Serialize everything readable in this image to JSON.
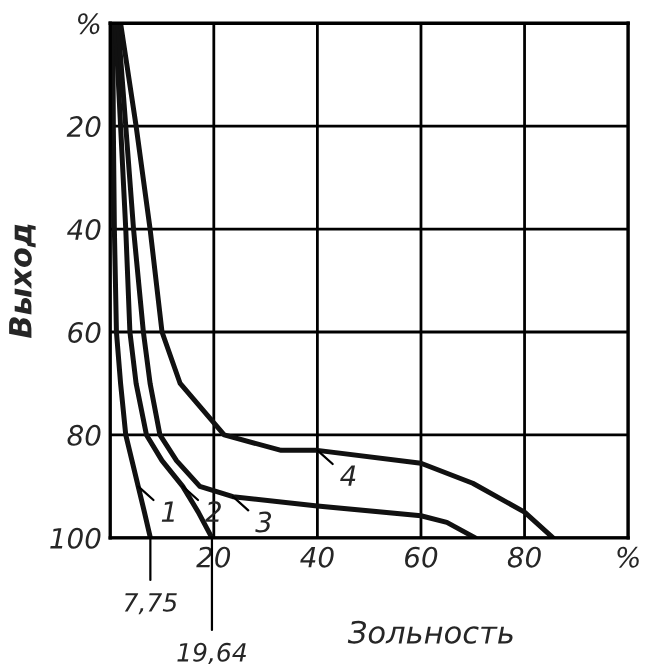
{
  "chart_data": {
    "type": "line",
    "xlabel": "Зольность",
    "ylabel": "Выход",
    "xlim": [
      0,
      100
    ],
    "ylim": [
      100,
      0
    ],
    "xticks": [
      20,
      40,
      60,
      80,
      {
        "value": 100,
        "label": "%"
      }
    ],
    "yticks": [
      {
        "value": 0,
        "label": "%"
      },
      20,
      40,
      60,
      80,
      100
    ],
    "grid": true,
    "marker": "none",
    "line_style": "solid",
    "series": [
      {
        "color": "#111111",
        "x": [
          0.5,
          0.6,
          0.8,
          1.2,
          2,
          3,
          4.2,
          5.4,
          6.6,
          7.75
        ],
        "values": [
          0,
          20,
          40,
          60,
          70,
          80,
          85,
          90,
          95,
          100
        ]
      },
      {
        "color": "#111111",
        "x": [
          1,
          2,
          3,
          3.8,
          5,
          7,
          10,
          14,
          17,
          19.64
        ],
        "values": [
          0,
          20,
          40,
          60,
          70,
          80,
          85,
          90,
          95,
          100
        ]
      },
      {
        "color": "#111111",
        "x": [
          1.5,
          3,
          4.5,
          6.4,
          7.7,
          9.6,
          12.8,
          17.3,
          23.7,
          40,
          60,
          65,
          70.5
        ],
        "values": [
          0,
          20,
          40,
          60,
          70,
          80,
          85,
          90,
          92,
          93.8,
          95.7,
          97,
          100
        ]
      },
      {
        "color": "#111111",
        "x": [
          2,
          5,
          7.7,
          10,
          13.5,
          22,
          33,
          40,
          60,
          70,
          80,
          85.5
        ],
        "values": [
          0,
          20,
          40,
          60,
          70,
          80,
          83,
          83,
          85.5,
          89.4,
          95,
          100
        ]
      }
    ],
    "annotations": [
      {
        "text": "1",
        "x": 5.4,
        "y": 90
      },
      {
        "text": "2",
        "x": 14,
        "y": 90
      },
      {
        "text": "3",
        "x": 23.7,
        "y": 92
      },
      {
        "text": "4",
        "x": 40,
        "y": 83
      },
      {
        "text": "7,75",
        "x": 7.75,
        "y": 100
      },
      {
        "text": "19,64",
        "x": 19.64,
        "y": 100
      }
    ]
  }
}
